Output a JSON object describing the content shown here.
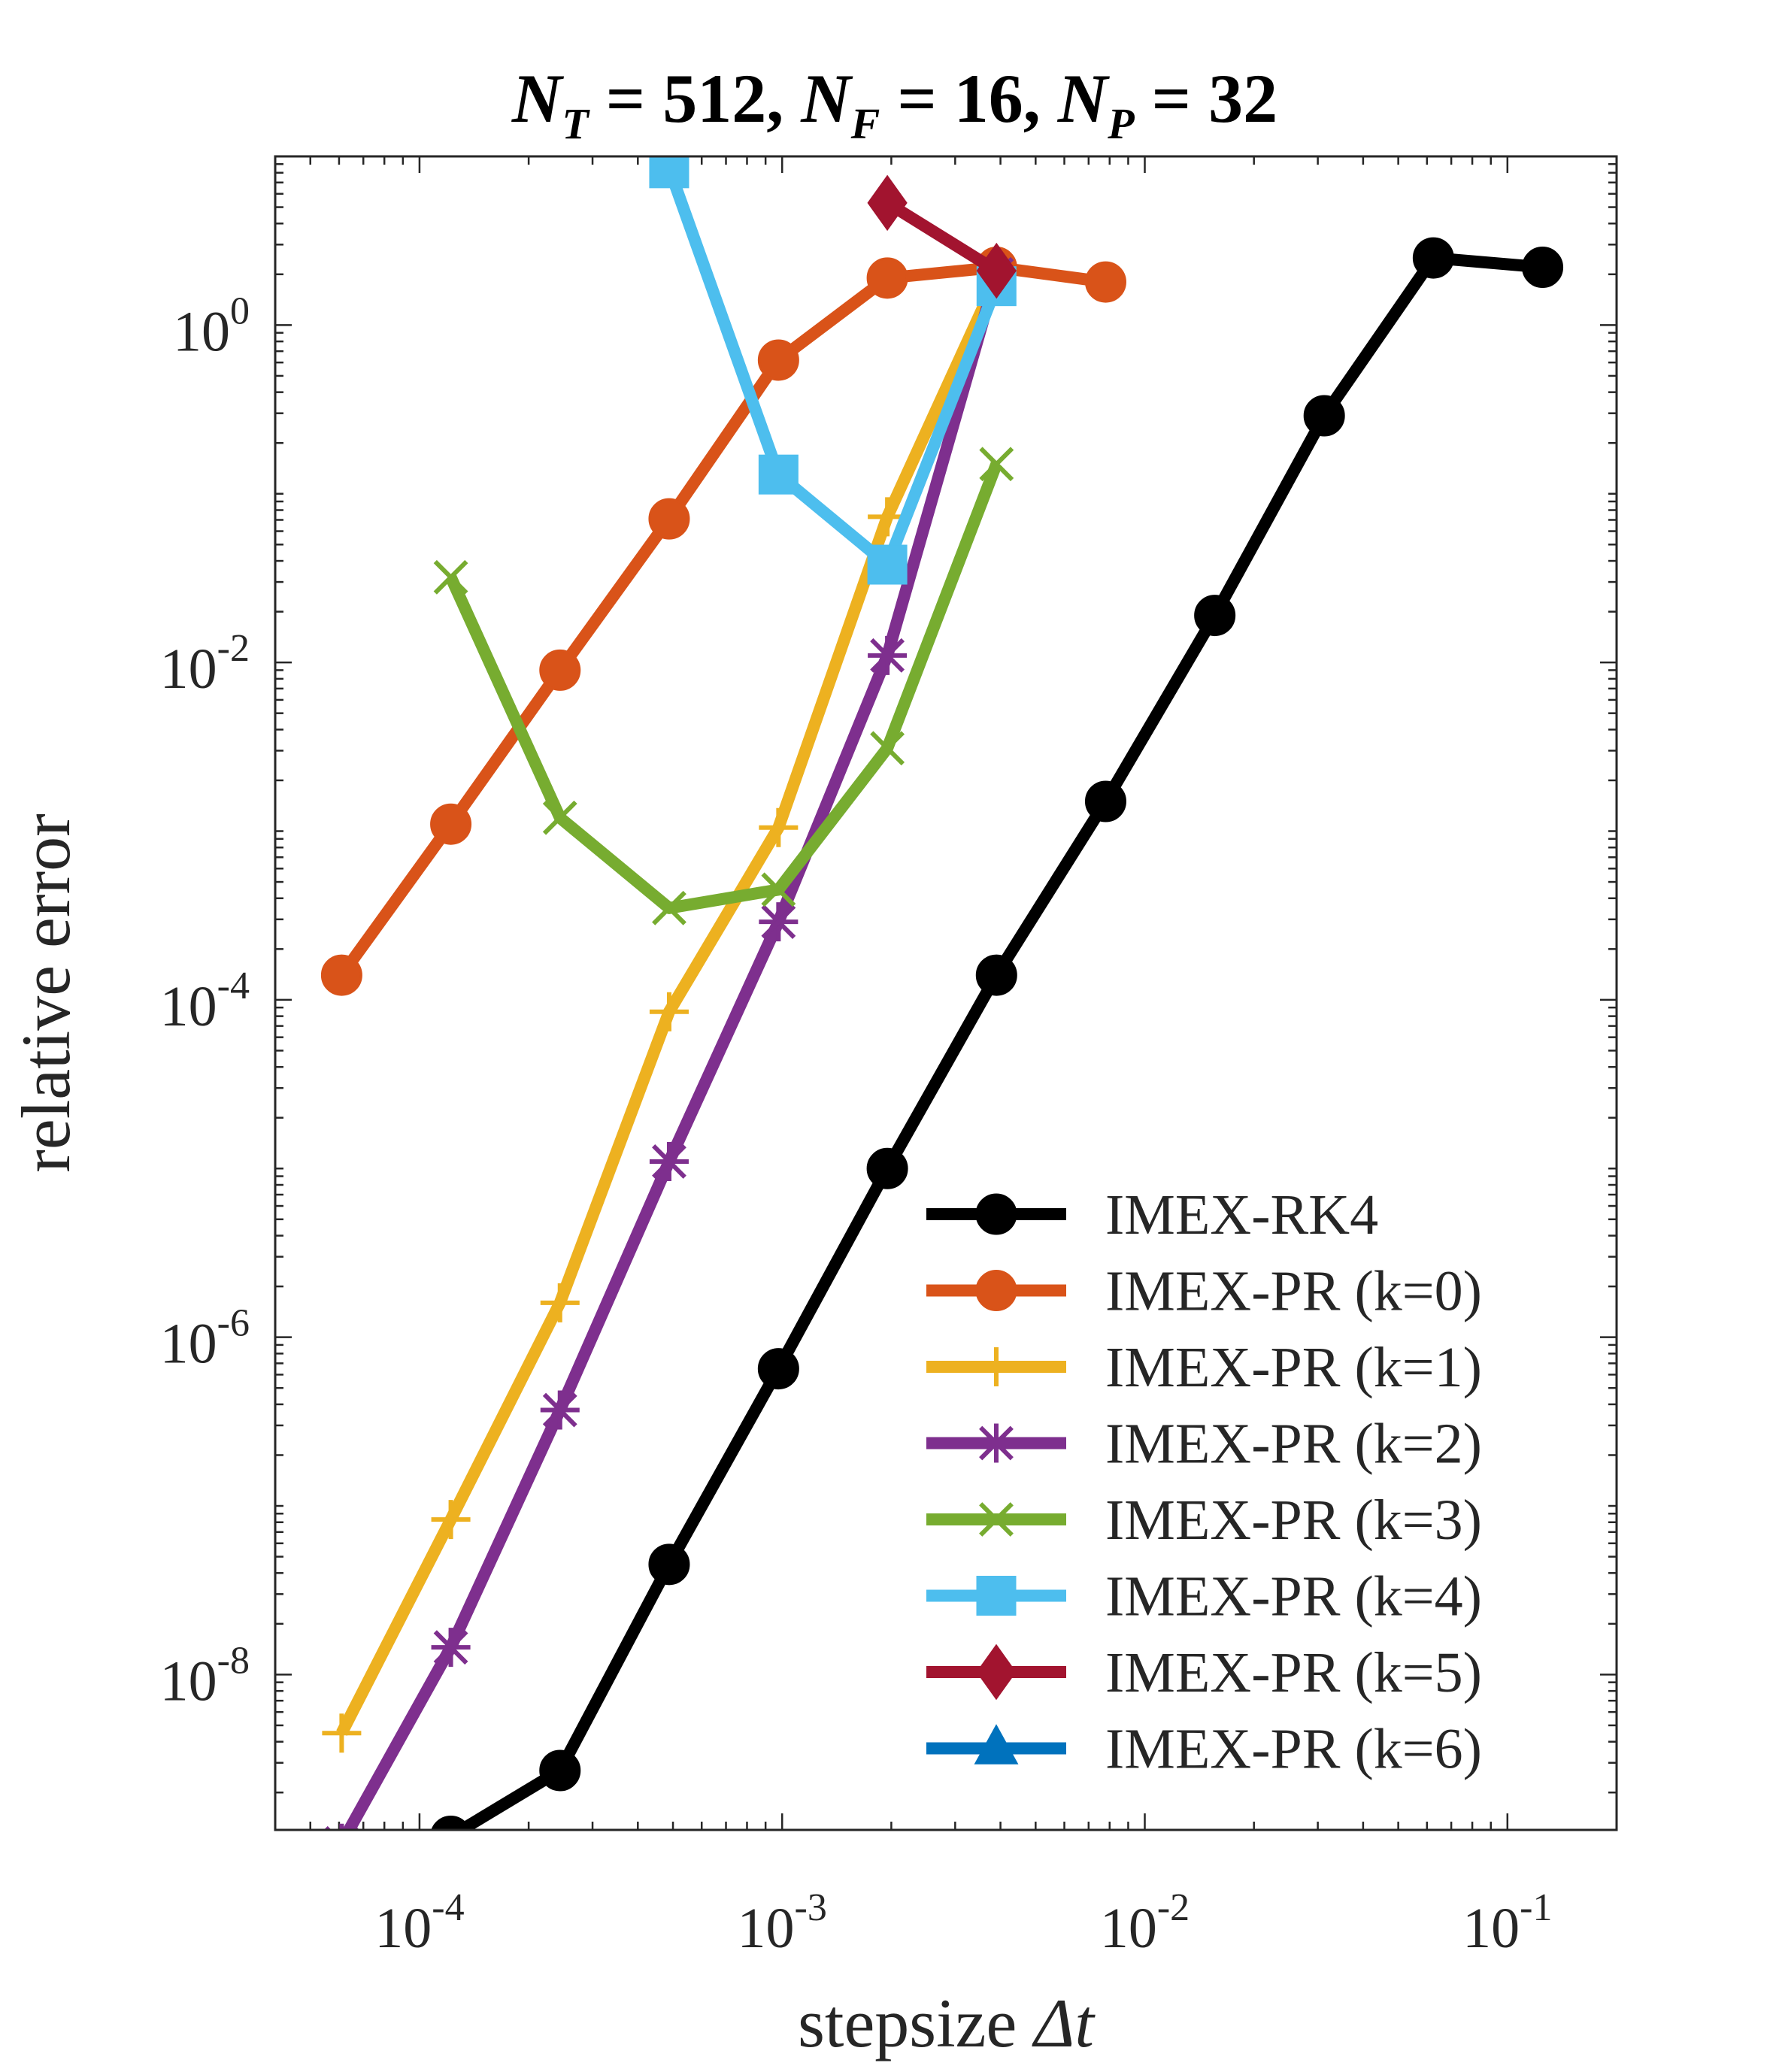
{
  "chart_data": {
    "type": "line",
    "title": "N_T = 512, N_F = 16, N_P = 32",
    "title_parts": [
      {
        "sym": "N",
        "sub": "T",
        "rest": " = 512, "
      },
      {
        "sym": "N",
        "sub": "F",
        "rest": " = 16, "
      },
      {
        "sym": "N",
        "sub": "P",
        "rest": " = 32"
      }
    ],
    "xlabel": "stepsize",
    "xlabel_symbol": "Δt",
    "ylabel": "relative error",
    "x_scale": "log",
    "y_scale": "log",
    "xlim": [
      4e-05,
      0.2
    ],
    "ylim": [
      1.2e-09,
      10
    ],
    "grid": false,
    "legend_position": "bottom-right",
    "x_ticks": [
      {
        "value": 0.0001,
        "base": "10",
        "exp": "-4"
      },
      {
        "value": 0.001,
        "base": "10",
        "exp": "-3"
      },
      {
        "value": 0.01,
        "base": "10",
        "exp": "-2"
      },
      {
        "value": 0.1,
        "base": "10",
        "exp": "-1"
      }
    ],
    "y_ticks": [
      {
        "value": 1,
        "base": "10",
        "exp": "0"
      },
      {
        "value": 0.01,
        "base": "10",
        "exp": "-2"
      },
      {
        "value": 0.0001,
        "base": "10",
        "exp": "-4"
      },
      {
        "value": 1e-06,
        "base": "10",
        "exp": "-6"
      },
      {
        "value": 1e-08,
        "base": "10",
        "exp": "-8"
      }
    ],
    "series": [
      {
        "name": "IMEX-RK4",
        "color": "#000000",
        "marker": "circle",
        "x": [
          0.000122,
          0.000244,
          0.000488,
          0.000977,
          0.00195,
          0.0039,
          0.0078,
          0.0156,
          0.03125,
          0.0625,
          0.125
        ],
        "y": [
          1.1e-09,
          2.7e-09,
          4.5e-08,
          6.5e-07,
          1e-05,
          0.00014,
          0.0015,
          0.019,
          0.29,
          2.5,
          2.2
        ]
      },
      {
        "name": "IMEX-PR (k=0)",
        "color": "#D95319",
        "marker": "circle",
        "x": [
          6.1e-05,
          0.000122,
          0.000244,
          0.000488,
          0.000977,
          0.00195,
          0.0039,
          0.0078
        ],
        "y": [
          0.00014,
          0.0011,
          0.009,
          0.071,
          0.62,
          1.9,
          2.2,
          1.8
        ]
      },
      {
        "name": "IMEX-PR (k=1)",
        "color": "#EDB120",
        "marker": "plus",
        "x": [
          6.1e-05,
          0.000122,
          0.000244,
          0.000488,
          0.000977,
          0.00195,
          0.0039
        ],
        "y": [
          4.5e-09,
          8.3e-08,
          1.6e-06,
          8.5e-05,
          0.00105,
          0.073,
          1.9
        ]
      },
      {
        "name": "IMEX-PR (k=2)",
        "color": "#7E2F8E",
        "marker": "asterisk",
        "x": [
          6.1e-05,
          0.000122,
          0.000244,
          0.000488,
          0.000977,
          0.00195,
          0.0039
        ],
        "y": [
          1e-09,
          1.45e-08,
          3.7e-07,
          1.1e-05,
          0.00029,
          0.011,
          2.0
        ]
      },
      {
        "name": "IMEX-PR (k=3)",
        "color": "#77AC30",
        "marker": "x",
        "x": [
          0.000122,
          0.000244,
          0.000488,
          0.000977,
          0.00195,
          0.0039
        ],
        "y": [
          0.032,
          0.0012,
          0.00035,
          0.00045,
          0.0031,
          0.15
        ]
      },
      {
        "name": "IMEX-PR (k=4)",
        "color": "#4DBEEE",
        "marker": "square",
        "x": [
          0.000488,
          0.000977,
          0.00195,
          0.0039
        ],
        "y": [
          8.5,
          0.13,
          0.038,
          1.7
        ]
      },
      {
        "name": "IMEX-PR (k=5)",
        "color": "#A2142F",
        "marker": "diamond",
        "x": [
          0.00195,
          0.0039
        ],
        "y": [
          5.3,
          2.1
        ]
      },
      {
        "name": "IMEX-PR (k=6)",
        "color": "#0072BD",
        "marker": "triangle",
        "x": [],
        "y": []
      }
    ]
  }
}
